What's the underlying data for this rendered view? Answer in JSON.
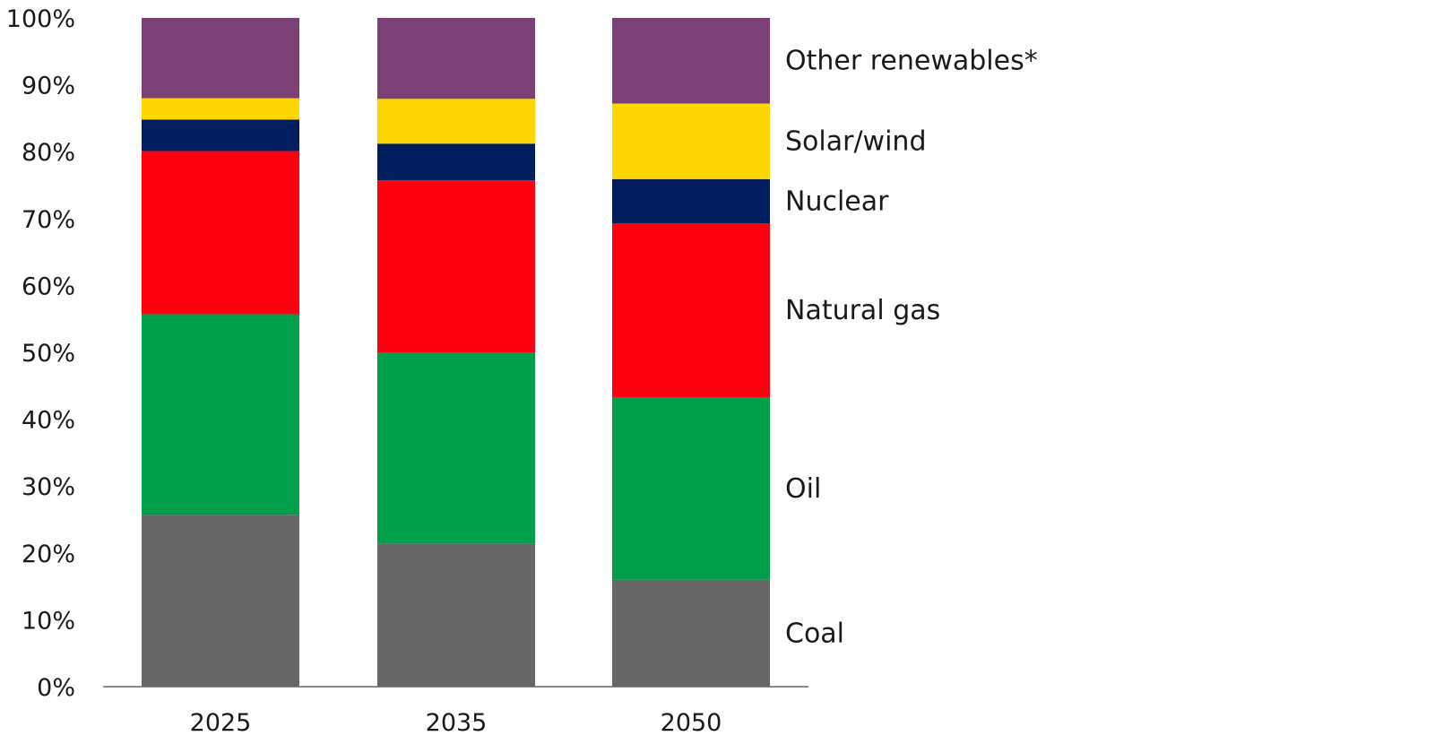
{
  "chart_data": {
    "type": "bar",
    "stacked": true,
    "categories": [
      "2025",
      "2035",
      "2050"
    ],
    "ylim": [
      0,
      100
    ],
    "yticks": [
      "0%",
      "10%",
      "20%",
      "30%",
      "40%",
      "50%",
      "60%",
      "70%",
      "80%",
      "90%",
      "100%"
    ],
    "title": "",
    "xlabel": "",
    "ylabel": "",
    "grid": false,
    "legend_position": "right, inline with 2050 bar",
    "series": [
      {
        "name": "Coal",
        "color": "#666666",
        "values": [
          25.7,
          21.4,
          16.0
        ]
      },
      {
        "name": "Oil",
        "color": "#00A04B",
        "values": [
          30.0,
          28.6,
          27.3
        ]
      },
      {
        "name": "Natural gas",
        "color": "#FF0011",
        "values": [
          24.4,
          25.7,
          26.0
        ]
      },
      {
        "name": "Nuclear",
        "color": "#001E5F",
        "values": [
          4.7,
          5.5,
          6.6
        ]
      },
      {
        "name": "Solar/wind",
        "color": "#FFD600",
        "values": [
          3.2,
          6.7,
          11.3
        ]
      },
      {
        "name": "Other renewables*",
        "color": "#7B4177",
        "values": [
          12.0,
          12.1,
          12.8
        ]
      }
    ]
  }
}
